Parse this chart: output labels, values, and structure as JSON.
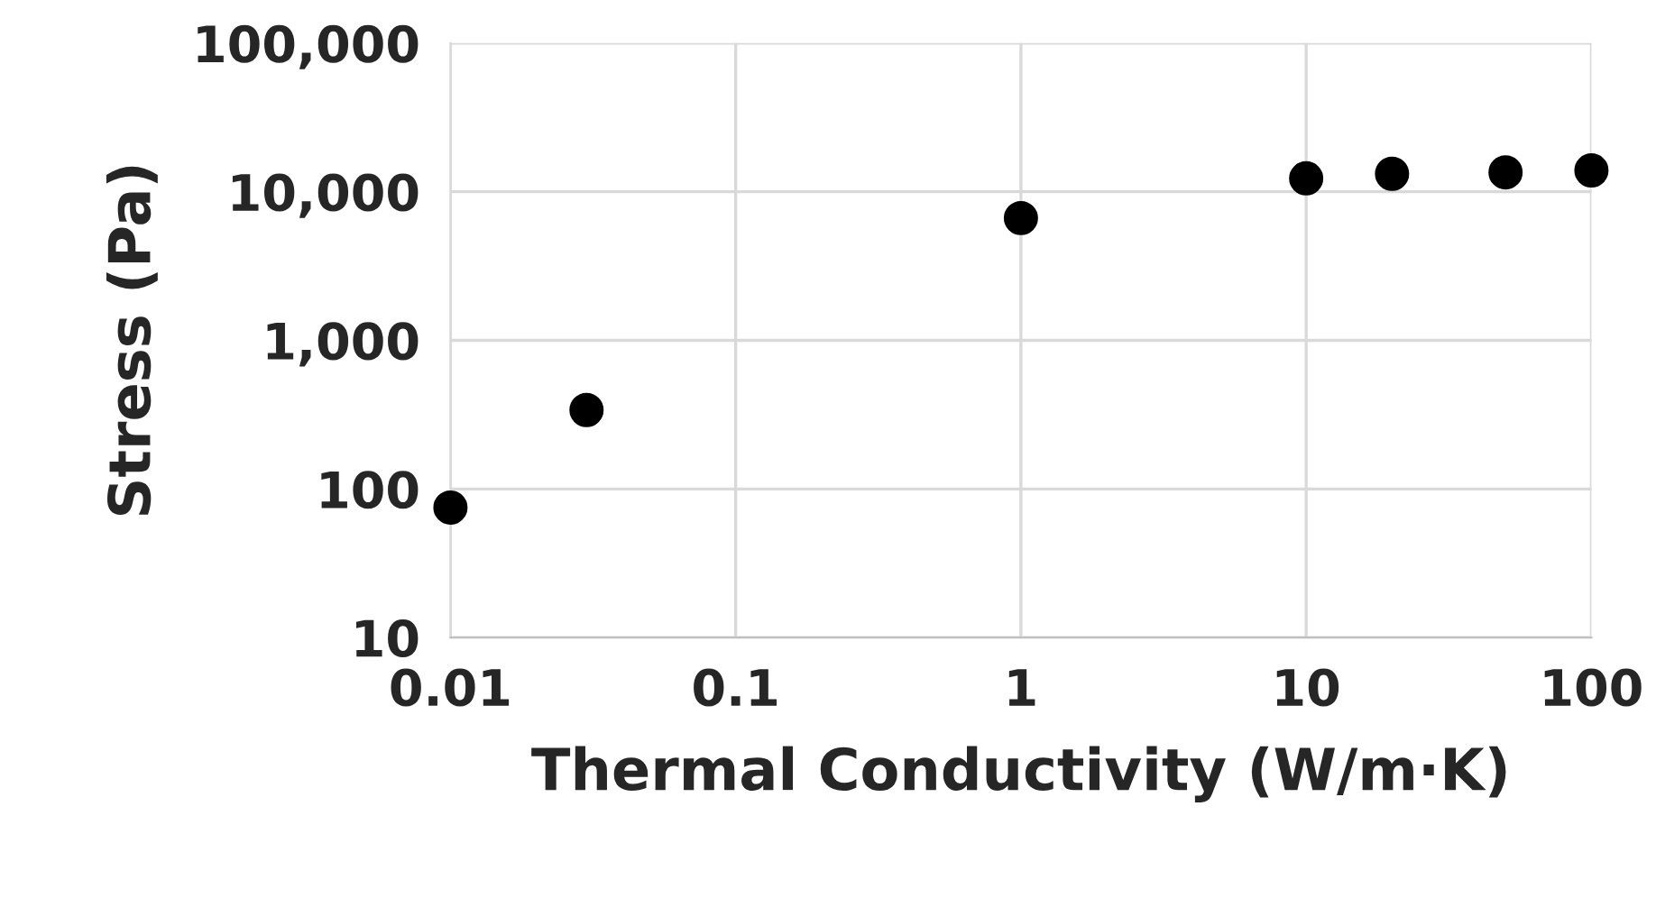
{
  "chart_data": {
    "type": "scatter",
    "xlabel": "Thermal Conductivity (W/m·K)",
    "ylabel": "Stress (Pa)",
    "x": [
      0.01,
      0.03,
      1,
      10,
      20,
      50,
      100
    ],
    "series": [
      {
        "color": "#000000",
        "values": [
          75,
          340,
          6650,
          12300,
          13200,
          13500,
          13900
        ]
      }
    ],
    "log": "xy",
    "xlim": [
      0.01,
      100
    ],
    "ylim": [
      10,
      100000
    ],
    "xticks": [
      0.01,
      0.1,
      1,
      10,
      100
    ],
    "yticks": [
      {
        "value": 10,
        "label": "10"
      },
      {
        "value": 100,
        "label": "100"
      },
      {
        "value": 1000,
        "label": "1,000"
      },
      {
        "value": 10000,
        "label": "10,000"
      },
      {
        "value": 100000,
        "label": "100,000"
      }
    ],
    "grid": true,
    "marker": "circle"
  }
}
